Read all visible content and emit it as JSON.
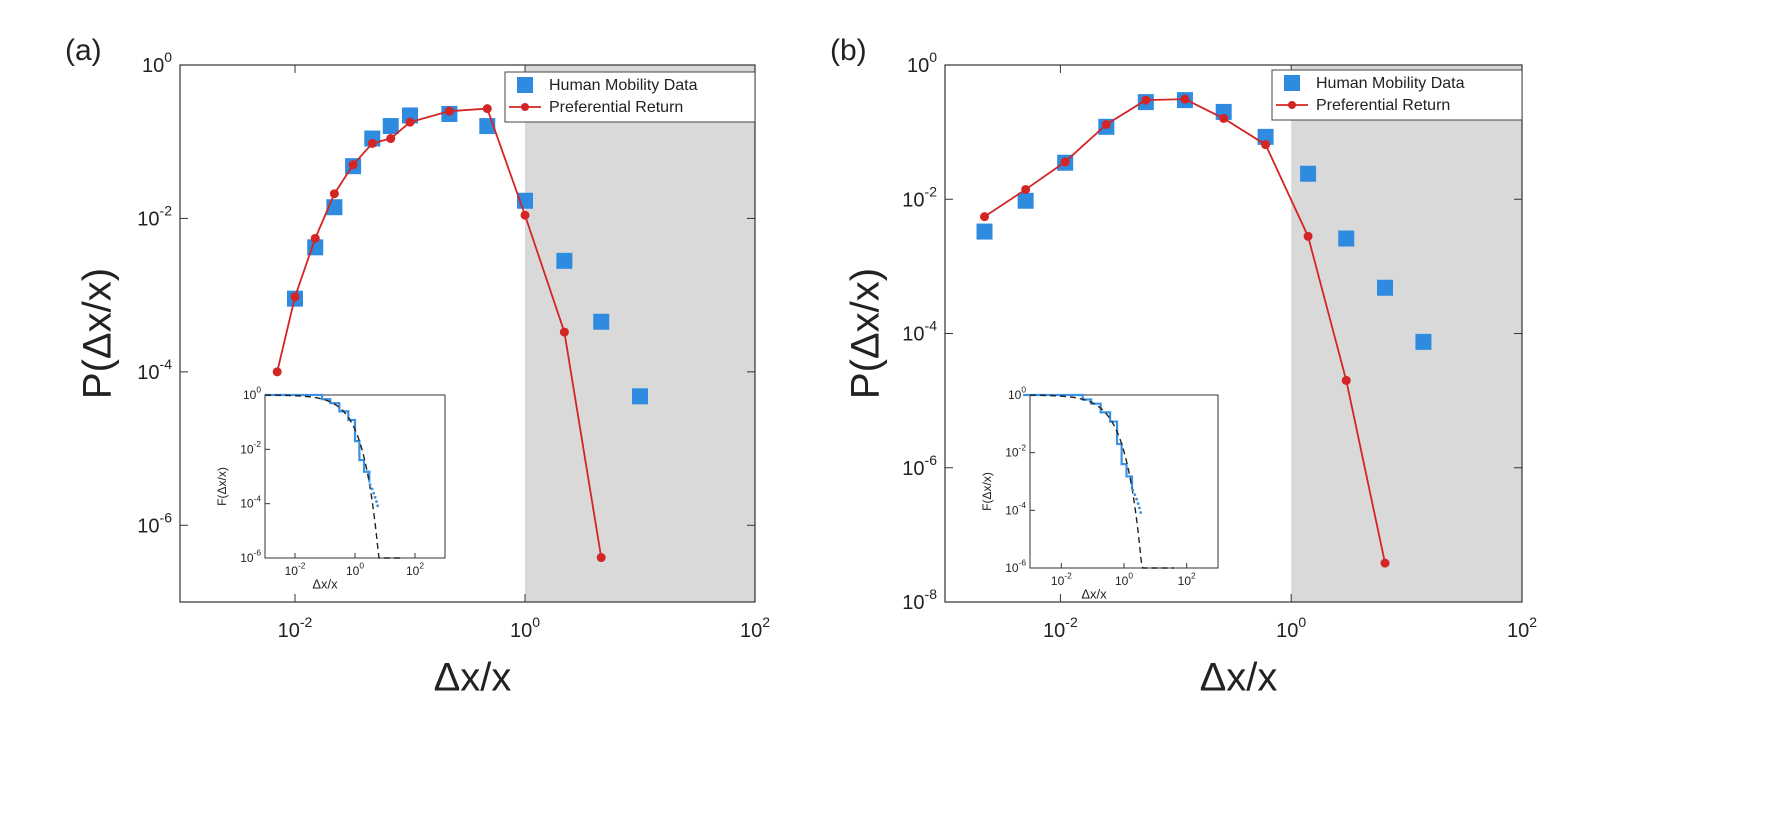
{
  "chart_data": [
    {
      "panel_label": "(a)",
      "type": "scatter",
      "xlabel": "Δx/x",
      "ylabel": "P(Δx/x)",
      "x_scale": "log",
      "y_scale": "log",
      "xlim": [
        0.001,
        100
      ],
      "ylim": [
        1e-07,
        1
      ],
      "xticks": [
        "10-2",
        "100",
        "102"
      ],
      "yticks": [
        "10-6",
        "10-4",
        "10-2",
        "100"
      ],
      "shaded_region": [
        1,
        100
      ],
      "legend_position": "top-right",
      "series": [
        {
          "name": "Human Mobility Data",
          "marker": "square",
          "color": "#2f8be0",
          "x": [
            0.01,
            0.015,
            0.022,
            0.032,
            0.047,
            0.068,
            0.1,
            0.22,
            0.47,
            1.0,
            2.2,
            4.6,
            10
          ],
          "y": [
            0.0009,
            0.0042,
            0.014,
            0.048,
            0.11,
            0.16,
            0.22,
            0.23,
            0.16,
            0.017,
            0.0028,
            0.00045,
            4.8e-05
          ]
        },
        {
          "name": "Preferential Return",
          "marker": "circle-line",
          "color": "#d42424",
          "x": [
            0.007,
            0.01,
            0.015,
            0.022,
            0.032,
            0.047,
            0.068,
            0.1,
            0.22,
            0.47,
            1.0,
            2.2,
            4.6
          ],
          "y": [
            0.0001,
            0.00095,
            0.0055,
            0.021,
            0.05,
            0.095,
            0.11,
            0.18,
            0.25,
            0.27,
            0.011,
            0.00033,
            3.8e-07
          ]
        }
      ],
      "inset": {
        "xlabel": "Δx/x",
        "ylabel": "F(Δx/x)",
        "xticks": [
          "10-2",
          "100",
          "102"
        ],
        "yticks": [
          "100",
          "10-2",
          "10-4",
          "10-6"
        ],
        "xlim": [
          0.001,
          1000
        ],
        "ylim": [
          1e-06,
          1
        ]
      }
    },
    {
      "panel_label": "(b)",
      "type": "scatter",
      "xlabel": "Δx/x",
      "ylabel": "P(Δx/x)",
      "x_scale": "log",
      "y_scale": "log",
      "xlim": [
        0.001,
        100
      ],
      "ylim": [
        1e-08,
        1
      ],
      "xticks": [
        "10-2",
        "100",
        "102"
      ],
      "yticks": [
        "10-8",
        "10-6",
        "10-4",
        "10-2",
        "100"
      ],
      "shaded_region": [
        1,
        100
      ],
      "legend_position": "top-right",
      "series": [
        {
          "name": "Human Mobility Data",
          "marker": "square",
          "color": "#2f8be0",
          "x": [
            0.0022,
            0.005,
            0.011,
            0.025,
            0.055,
            0.12,
            0.26,
            0.6,
            1.4,
            3.0,
            6.5,
            14
          ],
          "y": [
            0.0033,
            0.0095,
            0.035,
            0.12,
            0.28,
            0.3,
            0.2,
            0.085,
            0.024,
            0.0026,
            0.00048,
            7.5e-05
          ]
        },
        {
          "name": "Preferential Return",
          "marker": "circle-line",
          "color": "#d42424",
          "x": [
            0.0022,
            0.005,
            0.011,
            0.025,
            0.055,
            0.12,
            0.26,
            0.6,
            1.4,
            3.0,
            6.5
          ],
          "y": [
            0.0055,
            0.014,
            0.036,
            0.13,
            0.3,
            0.31,
            0.16,
            0.065,
            0.0028,
            2e-05,
            3.8e-08
          ]
        }
      ],
      "inset": {
        "xlabel": "Δx/x",
        "ylabel": "F(Δx/x)",
        "xticks": [
          "10-2",
          "100",
          "102"
        ],
        "yticks": [
          "100",
          "10-2",
          "10-4",
          "10-6"
        ],
        "xlim": [
          0.001,
          1000
        ],
        "ylim": [
          1e-06,
          1
        ]
      }
    }
  ]
}
